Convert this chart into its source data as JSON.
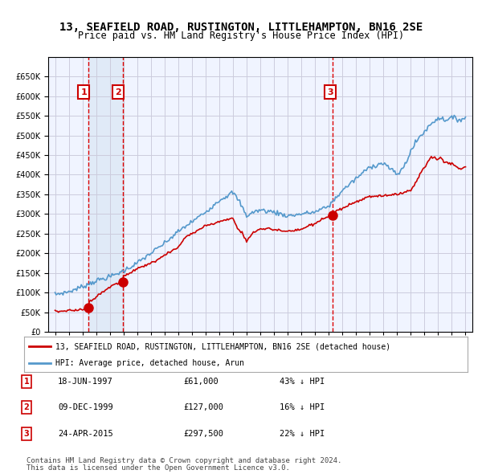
{
  "title": "13, SEAFIELD ROAD, RUSTINGTON, LITTLEHAMPTON, BN16 2SE",
  "subtitle": "Price paid vs. HM Land Registry's House Price Index (HPI)",
  "legend_label_red": "13, SEAFIELD ROAD, RUSTINGTON, LITTLEHAMPTON, BN16 2SE (detached house)",
  "legend_label_blue": "HPI: Average price, detached house, Arun",
  "footer_line1": "Contains HM Land Registry data © Crown copyright and database right 2024.",
  "footer_line2": "This data is licensed under the Open Government Licence v3.0.",
  "transactions": [
    {
      "num": 1,
      "date": "18-JUN-1997",
      "price": 61000,
      "pct": "43% ↓ HPI",
      "year": 1997.46
    },
    {
      "num": 2,
      "date": "09-DEC-1999",
      "price": 127000,
      "pct": "16% ↓ HPI",
      "year": 1999.94
    },
    {
      "num": 3,
      "date": "24-APR-2015",
      "price": 297500,
      "pct": "22% ↓ HPI",
      "year": 2015.31
    }
  ],
  "vline_colors": [
    "#dd0000",
    "#dd0000",
    "#dd0000"
  ],
  "vline_dates": [
    1997.46,
    1999.94,
    2015.31
  ],
  "shaded_region": [
    1997.46,
    1999.94
  ],
  "background_color": "#ffffff",
  "plot_bg_color": "#f0f4ff",
  "grid_color": "#ccccdd",
  "red_line_color": "#cc0000",
  "blue_line_color": "#5599cc",
  "dot_color": "#cc0000",
  "ylim": [
    0,
    700000
  ],
  "yticks": [
    0,
    50000,
    100000,
    150000,
    200000,
    250000,
    300000,
    350000,
    400000,
    450000,
    500000,
    550000,
    600000,
    650000
  ],
  "xlim": [
    1994.5,
    2025.5
  ],
  "xticks": [
    1995,
    1996,
    1997,
    1998,
    1999,
    2000,
    2001,
    2002,
    2003,
    2004,
    2005,
    2006,
    2007,
    2008,
    2009,
    2010,
    2011,
    2012,
    2013,
    2014,
    2015,
    2016,
    2017,
    2018,
    2019,
    2020,
    2021,
    2022,
    2023,
    2024,
    2025
  ]
}
